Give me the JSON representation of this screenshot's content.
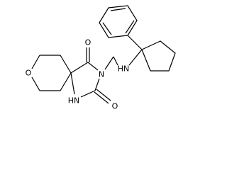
{
  "atoms": {
    "ring_oxygen": "O",
    "carbonyl_top": "O",
    "imide_n": "N",
    "carbonyl_bottom": "O",
    "amide_nh": "HN",
    "amine_nh": "HN"
  }
}
